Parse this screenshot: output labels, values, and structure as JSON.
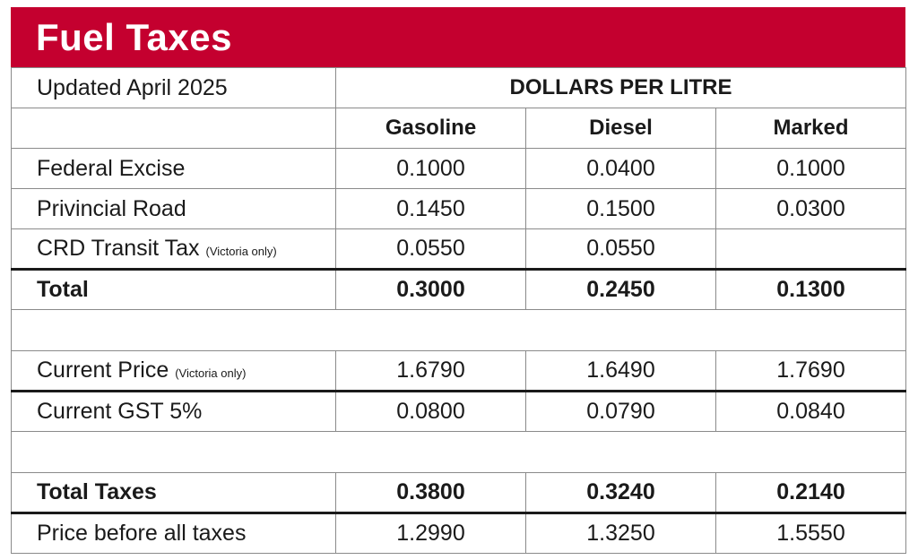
{
  "title": "Fuel Taxes",
  "updated": "Updated April 2025",
  "units_header": "DOLLARS PER LITRE",
  "columns": [
    "Gasoline",
    "Diesel",
    "Marked"
  ],
  "rows": {
    "federal_excise": {
      "label": "Federal Excise",
      "values": [
        "0.1000",
        "0.0400",
        "0.1000"
      ]
    },
    "provincial_road": {
      "label": "Privincial Road",
      "values": [
        "0.1450",
        "0.1500",
        "0.0300"
      ]
    },
    "crd_transit": {
      "label": "CRD Transit Tax",
      "note": "(Victoria only)",
      "values": [
        "0.0550",
        "0.0550",
        ""
      ]
    },
    "total": {
      "label": "Total",
      "values": [
        "0.3000",
        "0.2450",
        "0.1300"
      ]
    },
    "current_price": {
      "label": "Current Price",
      "note": "(Victoria only)",
      "values": [
        "1.6790",
        "1.6490",
        "1.7690"
      ]
    },
    "current_gst": {
      "label": "Current GST 5%",
      "values": [
        "0.0800",
        "0.0790",
        "0.0840"
      ]
    },
    "total_taxes": {
      "label": "Total Taxes",
      "values": [
        "0.3800",
        "0.3240",
        "0.2140"
      ]
    },
    "price_before_taxes": {
      "label": "Price before all taxes",
      "values": [
        "1.2990",
        "1.3250",
        "1.5550"
      ]
    }
  }
}
